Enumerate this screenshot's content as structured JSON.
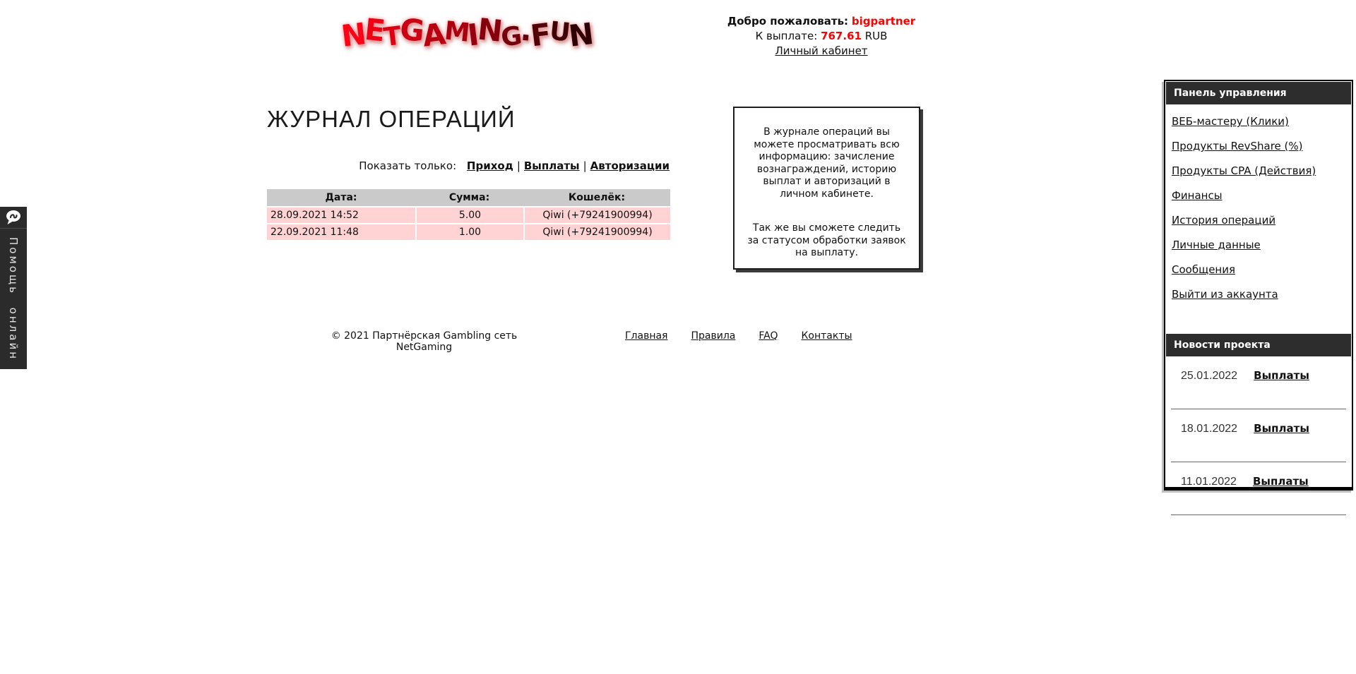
{
  "logo": {
    "text": "NetGaming.Fun"
  },
  "header": {
    "welcome_label": "Добро пожаловать:",
    "username": "bigpartner",
    "payout_label": "К выплате:",
    "payout_amount": "767.61",
    "currency": "RUB",
    "cabinet_link": "Личный кабинет"
  },
  "help_tab": {
    "label": "Помощь онлайн",
    "icon": "chat-bubble"
  },
  "main": {
    "title": "ЖУРНАЛ ОПЕРАЦИЙ",
    "filter": {
      "label": "Показать только:",
      "options": [
        {
          "sep": "",
          "label": "Приход"
        },
        {
          "sep": "|",
          "label": "Выплаты"
        },
        {
          "sep": "|",
          "label": "Авторизации"
        }
      ]
    },
    "table": {
      "columns": [
        "Дата:",
        "Сумма:",
        "Кошелёк:"
      ],
      "rows": [
        {
          "date": "28.09.2021 14:52",
          "amount": "5.00",
          "wallet": "Qiwi (+79241900994)"
        },
        {
          "date": "22.09.2021 11:48",
          "amount": "1.00",
          "wallet": "Qiwi (+79241900994)"
        }
      ]
    },
    "info_box": {
      "paragraph1": "В журнале операций вы можете просматривать всю информацию: зачисление вознаграждений, историю выплат и авторизаций в личном кабинете.",
      "paragraph2": "Так же вы сможете следить за статусом обработки заявок на выплату."
    }
  },
  "sidebar": {
    "panel_title": "Панель управления",
    "items": [
      "ВЕБ-мастеру (Клики)",
      "Продукты RevShare (%)",
      "Продукты CPA (Действия)",
      "Финансы",
      "История операций",
      "Личные данные",
      "Сообщения",
      "Выйти из аккаунта"
    ],
    "news_title": "Новости проекта",
    "news": [
      {
        "date": "25.01.2022",
        "link": "Выплаты"
      },
      {
        "date": "18.01.2022",
        "link": "Выплаты"
      },
      {
        "date": "11.01.2022",
        "link": "Выплаты"
      }
    ]
  },
  "footer": {
    "copyright": "© 2021 Партнёрская Gambling сеть NetGaming",
    "links": [
      "Главная",
      "Правила",
      "FAQ",
      "Контакты"
    ]
  },
  "colors": {
    "accent_red": "#ff0000",
    "row_pink": "#ffd3d3",
    "header_gray": "#cacaca",
    "dark_bar": "#2d2d2d",
    "logo_red_start": "#ff0016",
    "logo_red_end": "#2e0005"
  }
}
